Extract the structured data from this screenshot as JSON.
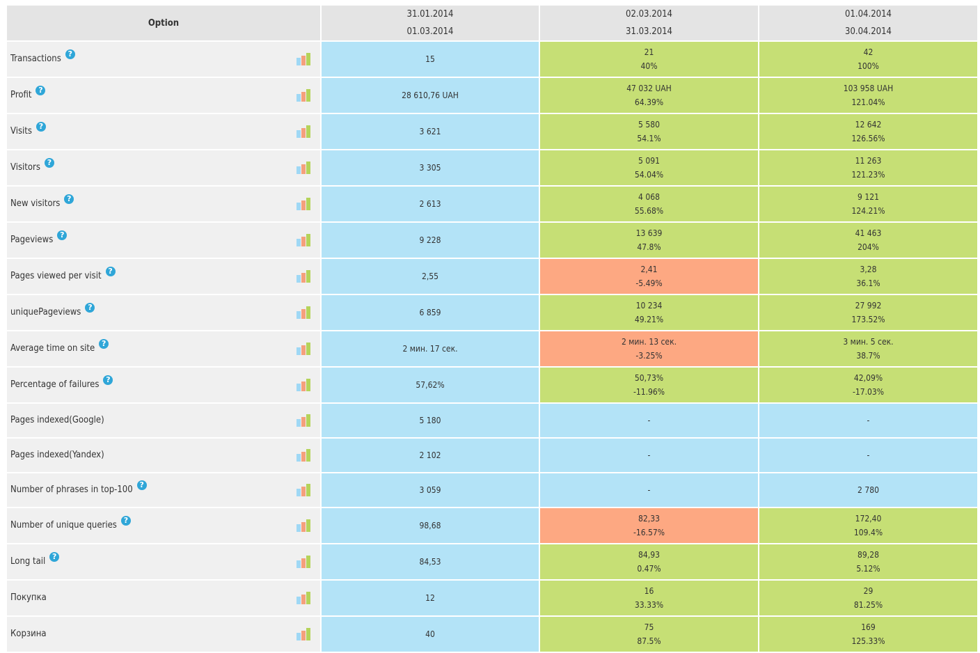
{
  "header": {
    "option_label": "Option",
    "periods": [
      {
        "from": "31.01.2014",
        "to": "01.03.2014"
      },
      {
        "from": "02.03.2014",
        "to": "31.03.2014"
      },
      {
        "from": "01.04.2014",
        "to": "30.04.2014"
      }
    ]
  },
  "colors": {
    "base": "#b3e3f7",
    "up": "#c6df75",
    "down": "#fda882",
    "header": "#e4e4e4",
    "label": "#f0f0f0",
    "help": "#2fa6d8"
  },
  "rows": [
    {
      "name": "Transactions",
      "help": true,
      "height": 50,
      "base": "15",
      "c2": {
        "value": "21",
        "pct": "40%",
        "state": "up"
      },
      "c3": {
        "value": "42",
        "pct": "100%",
        "state": "up"
      }
    },
    {
      "name": "Profit",
      "help": true,
      "height": 50,
      "base": "28 610,76 UAH",
      "c2": {
        "value": "47 032 UAH",
        "pct": "64.39%",
        "state": "up"
      },
      "c3": {
        "value": "103 958 UAH",
        "pct": "121.04%",
        "state": "up"
      }
    },
    {
      "name": "Visits",
      "help": true,
      "height": 50,
      "base": "3 621",
      "c2": {
        "value": "5 580",
        "pct": "54.1%",
        "state": "up"
      },
      "c3": {
        "value": "12 642",
        "pct": "126.56%",
        "state": "up"
      }
    },
    {
      "name": "Visitors",
      "help": true,
      "height": 50,
      "base": "3 305",
      "c2": {
        "value": "5 091",
        "pct": "54.04%",
        "state": "up"
      },
      "c3": {
        "value": "11 263",
        "pct": "121.23%",
        "state": "up"
      }
    },
    {
      "name": "New visitors",
      "help": true,
      "height": 50,
      "base": "2 613",
      "c2": {
        "value": "4 068",
        "pct": "55.68%",
        "state": "up"
      },
      "c3": {
        "value": "9 121",
        "pct": "124.21%",
        "state": "up"
      }
    },
    {
      "name": "Pageviews",
      "help": true,
      "height": 50,
      "base": "9 228",
      "c2": {
        "value": "13 639",
        "pct": "47.8%",
        "state": "up"
      },
      "c3": {
        "value": "41 463",
        "pct": "204%",
        "state": "up"
      }
    },
    {
      "name": "Pages viewed per visit",
      "help": true,
      "height": 50,
      "base": "2,55",
      "c2": {
        "value": "2,41",
        "pct": "-5.49%",
        "state": "down"
      },
      "c3": {
        "value": "3,28",
        "pct": "36.1%",
        "state": "up"
      }
    },
    {
      "name": "uniquePageviews",
      "help": true,
      "height": 50,
      "base": "6 859",
      "c2": {
        "value": "10 234",
        "pct": "49.21%",
        "state": "up"
      },
      "c3": {
        "value": "27 992",
        "pct": "173.52%",
        "state": "up"
      }
    },
    {
      "name": "Average time on site",
      "help": true,
      "height": 50,
      "base": "2 мин. 17 сек.",
      "c2": {
        "value": "2 мин. 13 сек.",
        "pct": "-3.25%",
        "state": "down"
      },
      "c3": {
        "value": "3 мин. 5 сек.",
        "pct": "38.7%",
        "state": "up"
      }
    },
    {
      "name": "Percentage of failures",
      "help": true,
      "height": 50,
      "base": "57,62%",
      "c2": {
        "value": "50,73%",
        "pct": "-11.96%",
        "state": "up"
      },
      "c3": {
        "value": "42,09%",
        "pct": "-17.03%",
        "state": "up"
      }
    },
    {
      "name": "Pages indexed(Google)",
      "help": false,
      "height": 48,
      "base": "5 180",
      "c2": {
        "value": "-",
        "pct": "",
        "state": "none"
      },
      "c3": {
        "value": "-",
        "pct": "",
        "state": "none"
      }
    },
    {
      "name": "Pages indexed(Yandex)",
      "help": false,
      "height": 48,
      "base": "2 102",
      "c2": {
        "value": "-",
        "pct": "",
        "state": "none"
      },
      "c3": {
        "value": "-",
        "pct": "",
        "state": "none"
      }
    },
    {
      "name": "Number of phrases in top-100",
      "help": true,
      "height": 48,
      "base": "3 059",
      "c2": {
        "value": "-",
        "pct": "",
        "state": "none"
      },
      "c3": {
        "value": "2 780",
        "pct": "",
        "state": "none"
      }
    },
    {
      "name": "Number of unique queries",
      "help": true,
      "height": 50,
      "base": "98,68",
      "c2": {
        "value": "82,33",
        "pct": "-16.57%",
        "state": "down"
      },
      "c3": {
        "value": "172,40",
        "pct": "109.4%",
        "state": "up"
      }
    },
    {
      "name": "Long tail",
      "help": true,
      "height": 50,
      "base": "84,53",
      "c2": {
        "value": "84,93",
        "pct": "0.47%",
        "state": "up"
      },
      "c3": {
        "value": "89,28",
        "pct": "5.12%",
        "state": "up"
      }
    },
    {
      "name": "Покупка",
      "help": false,
      "height": 50,
      "base": "12",
      "c2": {
        "value": "16",
        "pct": "33.33%",
        "state": "up"
      },
      "c3": {
        "value": "29",
        "pct": "81.25%",
        "state": "up"
      }
    },
    {
      "name": "Корзина",
      "help": false,
      "height": 50,
      "base": "40",
      "c2": {
        "value": "75",
        "pct": "87.5%",
        "state": "up"
      },
      "c3": {
        "value": "169",
        "pct": "125.33%",
        "state": "up"
      }
    }
  ]
}
